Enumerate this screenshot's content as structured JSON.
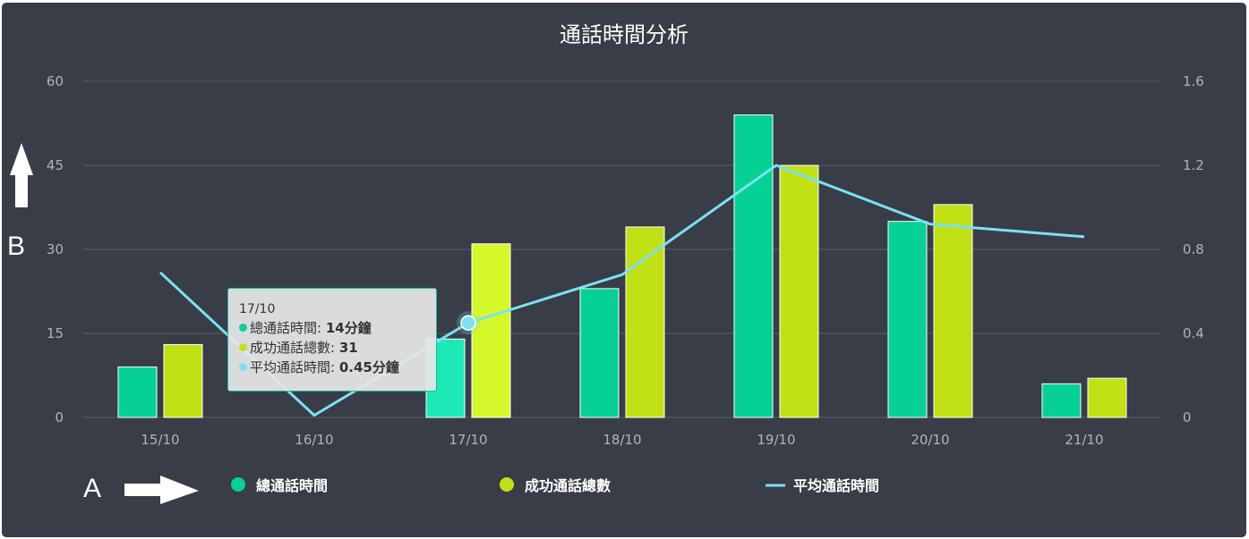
{
  "chart_data": {
    "type": "bar",
    "title": "通話時間分析",
    "categories": [
      "15/10",
      "16/10",
      "17/10",
      "18/10",
      "19/10",
      "20/10",
      "21/10"
    ],
    "y_left": {
      "ticks": [
        "0",
        "15",
        "30",
        "45",
        "60"
      ],
      "range": [
        0,
        60
      ]
    },
    "y_right": {
      "ticks": [
        "0",
        "0.4",
        "0.8",
        "1.2",
        "1.6"
      ],
      "range": [
        0,
        1.6
      ]
    },
    "grid": true,
    "legend_position": "bottom",
    "series": [
      {
        "name": "總通話時間",
        "type": "bar",
        "axis": "left",
        "color": "#05d195",
        "values": [
          9,
          null,
          14,
          23,
          54,
          35,
          6
        ]
      },
      {
        "name": "成功通話總數",
        "type": "bar",
        "axis": "left",
        "color": "#c1e114",
        "values": [
          13,
          null,
          31,
          34,
          45,
          38,
          7
        ]
      },
      {
        "name": "平均通話時間",
        "type": "line",
        "axis": "right",
        "color": "#7ae1f4",
        "values": [
          0.69,
          0.01,
          0.45,
          0.68,
          1.2,
          0.92,
          0.86
        ]
      }
    ],
    "highlight_index": 2,
    "tooltip": {
      "date": "17/10",
      "rows": [
        {
          "label": "總通話時間",
          "value": "14分鐘",
          "color": "#05d195"
        },
        {
          "label": "成功通話總數",
          "value": "31",
          "color": "#c1e114"
        },
        {
          "label": "平均通話時間",
          "value": "0.45分鐘",
          "color": "#7ae1f4"
        }
      ]
    }
  },
  "annotations": {
    "label_a": "A",
    "label_b": "B"
  },
  "colors": {
    "background": "#393d47",
    "grid": "#5a5e66",
    "text": "#b0b3b8",
    "title": "#ffffff"
  }
}
